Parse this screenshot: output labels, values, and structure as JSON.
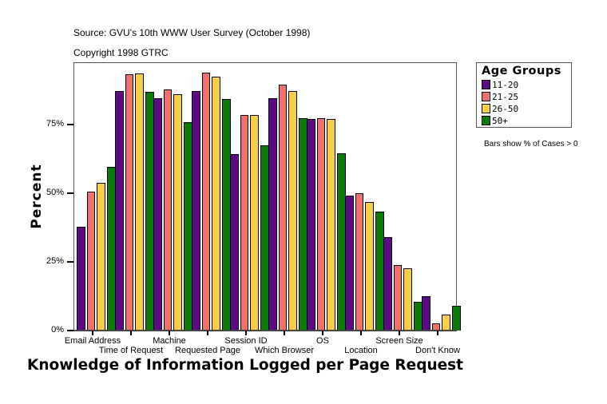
{
  "header": {
    "source": "Source: GVU's 10th WWW User Survey (October 1998)",
    "copyright": "Copyright 1998 GTRC"
  },
  "legend": {
    "title": "Age Groups",
    "items": [
      {
        "label": "11-20",
        "color": "#5c0a8a"
      },
      {
        "label": "21-25",
        "color": "#f07070"
      },
      {
        "label": "26-50",
        "color": "#f8d048"
      },
      {
        "label": "50+",
        "color": "#0a7a0a"
      }
    ],
    "note": "Bars show % of Cases > 0"
  },
  "chart_data": {
    "type": "bar",
    "title": "Knowledge of Information Logged per Page Request",
    "xlabel": "Knowledge of Information Logged per Page Request",
    "ylabel": "Percent",
    "ylim": [
      0,
      98
    ],
    "yticks": [
      "0%",
      "25%",
      "50%",
      "75%"
    ],
    "grid": false,
    "legend_position": "right",
    "categories": [
      "Email Address",
      "Time of Request",
      "Machine",
      "Requested Page",
      "Session ID",
      "Which Browser",
      "OS",
      "Location",
      "Screen Size",
      "Don't Know"
    ],
    "series": [
      {
        "name": "11-20",
        "color": "#5c0a8a",
        "values": [
          37.8,
          87.2,
          84.6,
          87.2,
          64.2,
          84.6,
          77.0,
          49.1,
          34.0,
          12.5
        ]
      },
      {
        "name": "21-25",
        "color": "#f07070",
        "values": [
          50.6,
          93.3,
          87.8,
          93.9,
          78.5,
          89.5,
          77.3,
          50.0,
          23.8,
          2.6
        ]
      },
      {
        "name": "26-50",
        "color": "#f8d048",
        "values": [
          53.8,
          93.6,
          86.0,
          92.4,
          78.5,
          87.2,
          77.0,
          46.8,
          22.7,
          5.8
        ]
      },
      {
        "name": "50+",
        "color": "#0a7a0a",
        "values": [
          59.6,
          86.9,
          75.9,
          84.3,
          67.4,
          77.3,
          64.5,
          43.3,
          10.5,
          9.0
        ]
      }
    ]
  }
}
